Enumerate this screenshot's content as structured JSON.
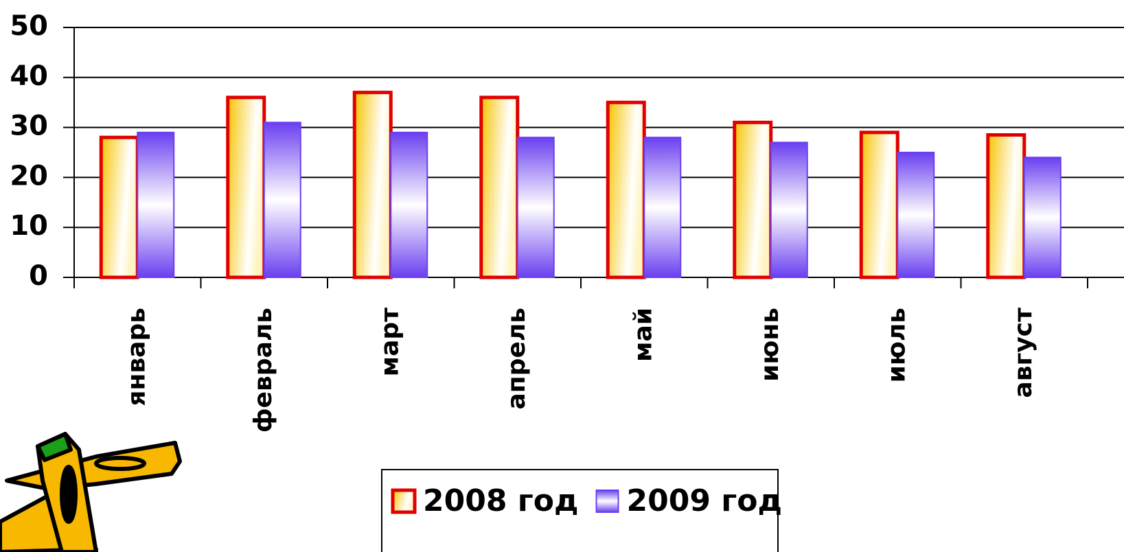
{
  "chart_data": {
    "type": "bar",
    "categories": [
      "январь",
      "февраль",
      "март",
      "апрель",
      "май",
      "июнь",
      "июль",
      "август"
    ],
    "series": [
      {
        "name": "2008 год",
        "color": "#e00000",
        "values": [
          28,
          36,
          37,
          36,
          35,
          31,
          29,
          28.5
        ]
      },
      {
        "name": "2009 год",
        "color": "#6a3ff0",
        "values": [
          29,
          31,
          29,
          28,
          28,
          27,
          25,
          24
        ]
      }
    ],
    "ylim": [
      0,
      50
    ],
    "yticks": [
      0,
      10,
      20,
      30,
      40,
      50
    ],
    "grid": true,
    "legend": "bottom"
  }
}
